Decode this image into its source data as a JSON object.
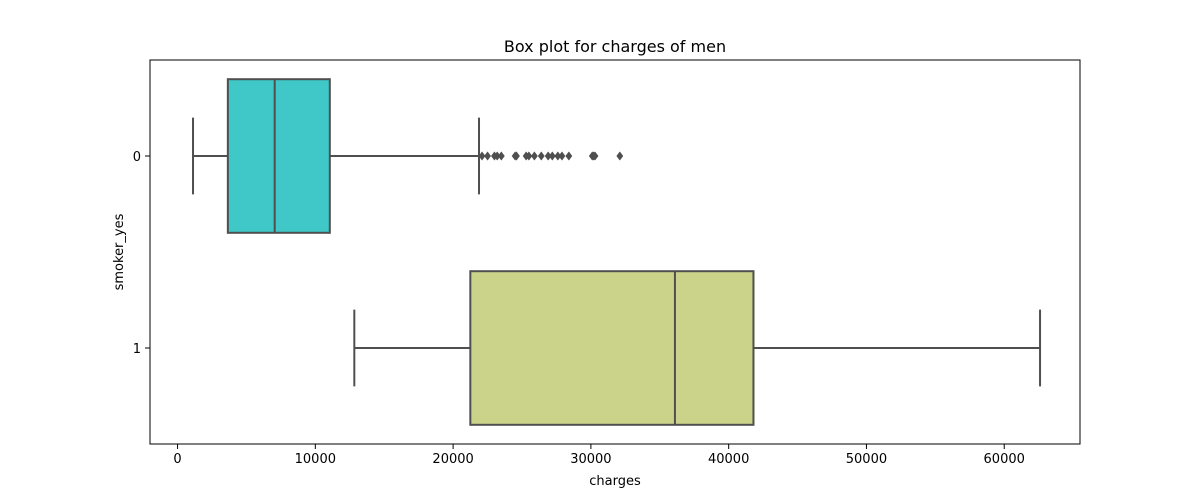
{
  "chart_data": {
    "type": "box",
    "orientation": "horizontal",
    "title": "Box plot for charges of men",
    "xlabel": "charges",
    "ylabel": "smoker_yes",
    "xlim": [
      -2000,
      65500
    ],
    "xticks": [
      0,
      10000,
      20000,
      30000,
      40000,
      50000,
      60000
    ],
    "xtick_labels": [
      "0",
      "10000",
      "20000",
      "30000",
      "40000",
      "50000",
      "60000"
    ],
    "grid": false,
    "categories": [
      "0",
      "1"
    ],
    "boxes": [
      {
        "category": "0",
        "color": "#40c8c8",
        "whisker_low": 1122,
        "q1": 3650,
        "median": 7050,
        "q3": 11050,
        "whisker_high": 21880,
        "outliers": [
          22100,
          22500,
          23000,
          23200,
          23500,
          24500,
          24600,
          25300,
          25500,
          25900,
          26400,
          26900,
          27200,
          27600,
          27900,
          28400,
          30100,
          30200,
          30300,
          32100
        ]
      },
      {
        "category": "1",
        "color": "#cbd38a",
        "whisker_low": 12830,
        "q1": 21250,
        "median": 36100,
        "q3": 41800,
        "whisker_high": 62600,
        "outliers": []
      }
    ]
  }
}
